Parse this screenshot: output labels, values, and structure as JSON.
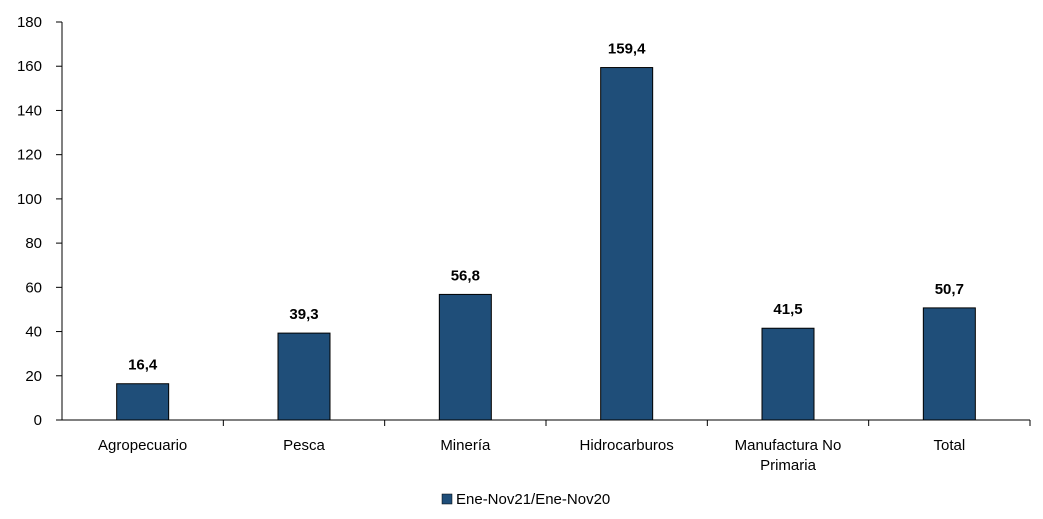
{
  "chart_data": {
    "type": "bar",
    "categories": [
      [
        "Agropecuario"
      ],
      [
        "Pesca"
      ],
      [
        "Minería"
      ],
      [
        "Hidrocarburos"
      ],
      [
        "Manufactura No",
        "Primaria"
      ],
      [
        "Total"
      ]
    ],
    "series": [
      {
        "name": "Ene-Nov21/Ene-Nov20",
        "color": "#1f4e79",
        "values": [
          16.4,
          39.3,
          56.8,
          159.4,
          41.5,
          50.7
        ],
        "labels": [
          "16,4",
          "39,3",
          "56,8",
          "159,4",
          "41,5",
          "50,7"
        ]
      }
    ],
    "ylim": [
      0,
      180
    ],
    "yticks": [
      0,
      20,
      40,
      60,
      80,
      100,
      120,
      140,
      160,
      180
    ],
    "xlabel": "",
    "ylabel": "",
    "grid": false,
    "legend": "bottom-center"
  }
}
